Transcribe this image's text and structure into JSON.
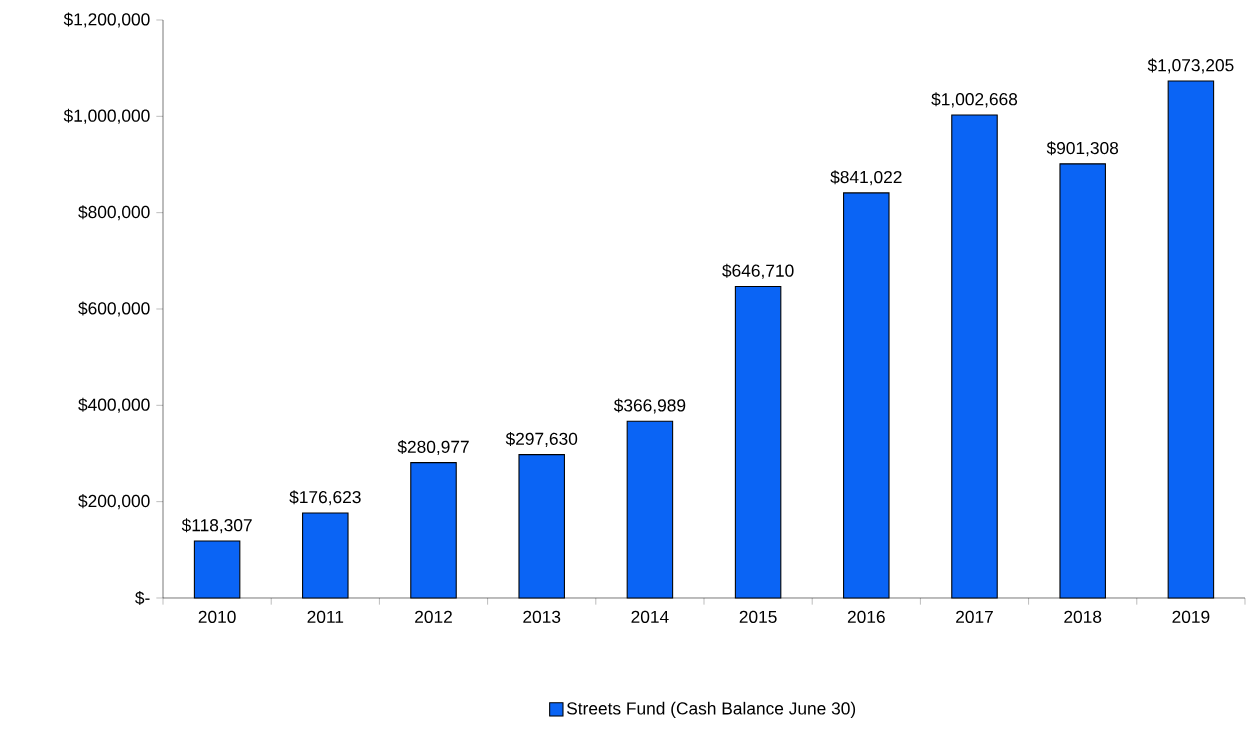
{
  "chart_data": {
    "type": "bar",
    "categories": [
      "2010",
      "2011",
      "2012",
      "2013",
      "2014",
      "2015",
      "2016",
      "2017",
      "2018",
      "2019"
    ],
    "series": [
      {
        "name": "Streets Fund (Cash Balance June 30)",
        "color": "#0a64f5",
        "values": [
          118307,
          176623,
          280977,
          297630,
          366989,
          646710,
          841022,
          1002668,
          901308,
          1073205
        ]
      }
    ],
    "value_labels": [
      "$118,307",
      "$176,623",
      "$280,977",
      "$297,630",
      "$366,989",
      "$646,710",
      "$841,022",
      "$1,002,668",
      "$901,308",
      "$1,073,205"
    ],
    "ylim": [
      0,
      1200000
    ],
    "yticks": [
      {
        "value": 0,
        "label": "$-"
      },
      {
        "value": 200000,
        "label": "$200,000"
      },
      {
        "value": 400000,
        "label": "$400,000"
      },
      {
        "value": 600000,
        "label": "$600,000"
      },
      {
        "value": 800000,
        "label": "$800,000"
      },
      {
        "value": 1000000,
        "label": "$1,000,000"
      },
      {
        "value": 1200000,
        "label": "$1,200,000"
      }
    ],
    "legend": "bottom",
    "grid": false
  }
}
